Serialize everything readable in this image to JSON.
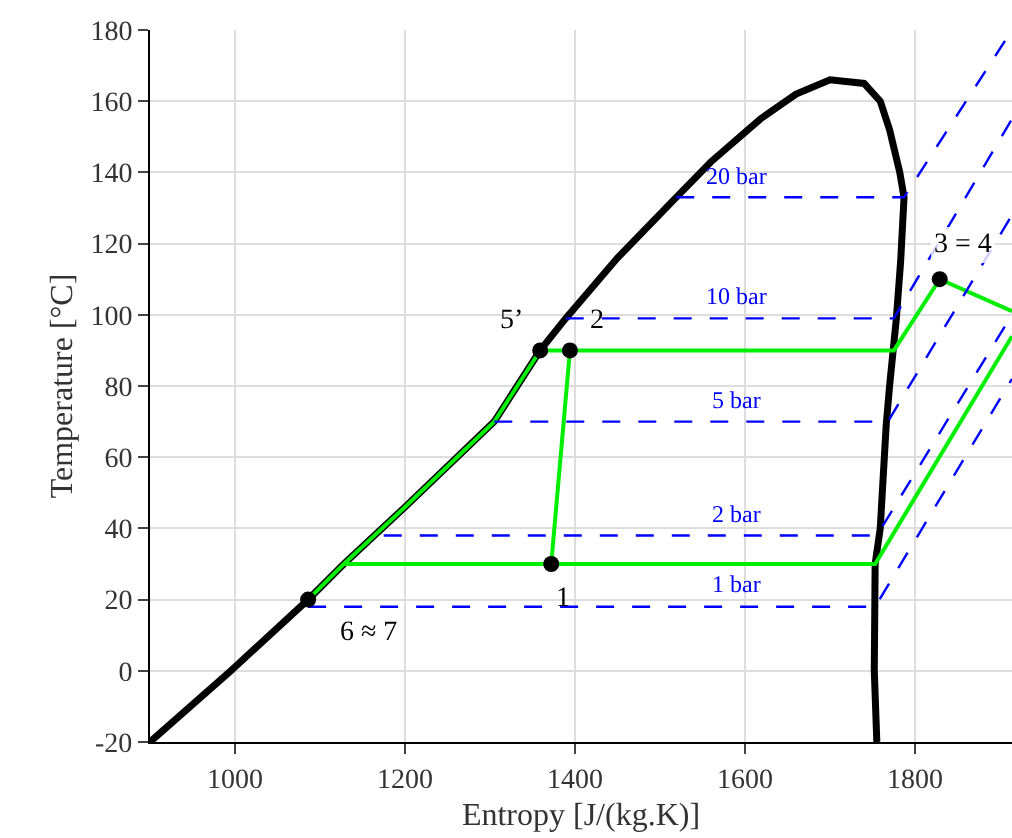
{
  "chart_data": {
    "type": "line",
    "xlabel": "Entropy [J/(kg.K)]",
    "ylabel": "Temperature [°C]",
    "xlim": [
      900,
      1914
    ],
    "ylim": [
      -20,
      180
    ],
    "xticks": [
      1000,
      1200,
      1400,
      1600,
      1800
    ],
    "yticks": [
      -20,
      0,
      20,
      40,
      60,
      80,
      100,
      120,
      140,
      160,
      180
    ],
    "grid": true,
    "series": [
      {
        "color": "#000000",
        "line_style": "solid",
        "x": [
          900,
          995,
          1086,
          1128,
          1200,
          1305,
          1359,
          1389,
          1450,
          1519,
          1560,
          1618,
          1660,
          1700,
          1740,
          1759,
          1770,
          1782,
          1787,
          1783,
          1778,
          1770,
          1766,
          1759,
          1753,
          1752,
          1755
        ],
        "values": [
          -20,
          0,
          20,
          30,
          46,
          70,
          90,
          99,
          116,
          133,
          143,
          155,
          162,
          166,
          165,
          160,
          152,
          140,
          133,
          115,
          99,
          80,
          69,
          40,
          30,
          0,
          -20
        ]
      },
      {
        "color": "#00ee00",
        "line_style": "solid",
        "x": [
          1086,
          1128,
          1200,
          1305,
          1359,
          1394,
          1372,
          1128,
          null,
          1372,
          1753,
          1914,
          null,
          1394,
          1775,
          1829,
          1914
        ],
        "values": [
          20,
          30,
          46,
          70,
          90,
          90,
          30,
          30,
          null,
          30,
          30,
          94,
          null,
          90,
          90,
          110,
          101
        ]
      },
      {
        "type": "line",
        "color": "#0000ff",
        "line_style": "dashed",
        "x": [
          1086,
          1753,
          1914
        ],
        "values": [
          18,
          18,
          82
        ]
      },
      {
        "type": "line",
        "color": "#0000ff",
        "line_style": "dashed",
        "x": [
          1175,
          1755,
          1914
        ],
        "values": [
          38,
          38,
          100
        ]
      },
      {
        "type": "line",
        "color": "#0000ff",
        "line_style": "dashed",
        "x": [
          1305,
          1768,
          1914
        ],
        "values": [
          70,
          70,
          128
        ]
      },
      {
        "type": "line",
        "color": "#0000ff",
        "line_style": "dashed",
        "x": [
          1389,
          1775,
          1914
        ],
        "values": [
          99,
          99,
          155
        ]
      },
      {
        "type": "line",
        "color": "#0000ff",
        "line_style": "dashed",
        "x": [
          1519,
          1787,
          1914
        ],
        "values": [
          133,
          133,
          180
        ]
      },
      {
        "type": "scatter",
        "color": "#000000",
        "marker": "circle",
        "x": [
          1086,
          1372,
          1359,
          1394,
          1829
        ],
        "values": [
          20,
          30,
          90,
          90,
          110
        ]
      }
    ],
    "annotations": [
      {
        "text": "1 bar",
        "x": 1590,
        "y": 18
      },
      {
        "text": "2 bar",
        "x": 1590,
        "y": 38
      },
      {
        "text": "5 bar",
        "x": 1590,
        "y": 70
      },
      {
        "text": "10 bar",
        "x": 1590,
        "y": 99
      },
      {
        "text": "20 bar",
        "x": 1590,
        "y": 133
      },
      {
        "text": "6 ≈ 7",
        "x": 1086,
        "y": 20
      },
      {
        "text": "1",
        "x": 1372,
        "y": 30
      },
      {
        "text": "5’",
        "x": 1359,
        "y": 90
      },
      {
        "text": "2",
        "x": 1394,
        "y": 90
      },
      {
        "text": "3 = 4",
        "x": 1829,
        "y": 110
      }
    ]
  }
}
